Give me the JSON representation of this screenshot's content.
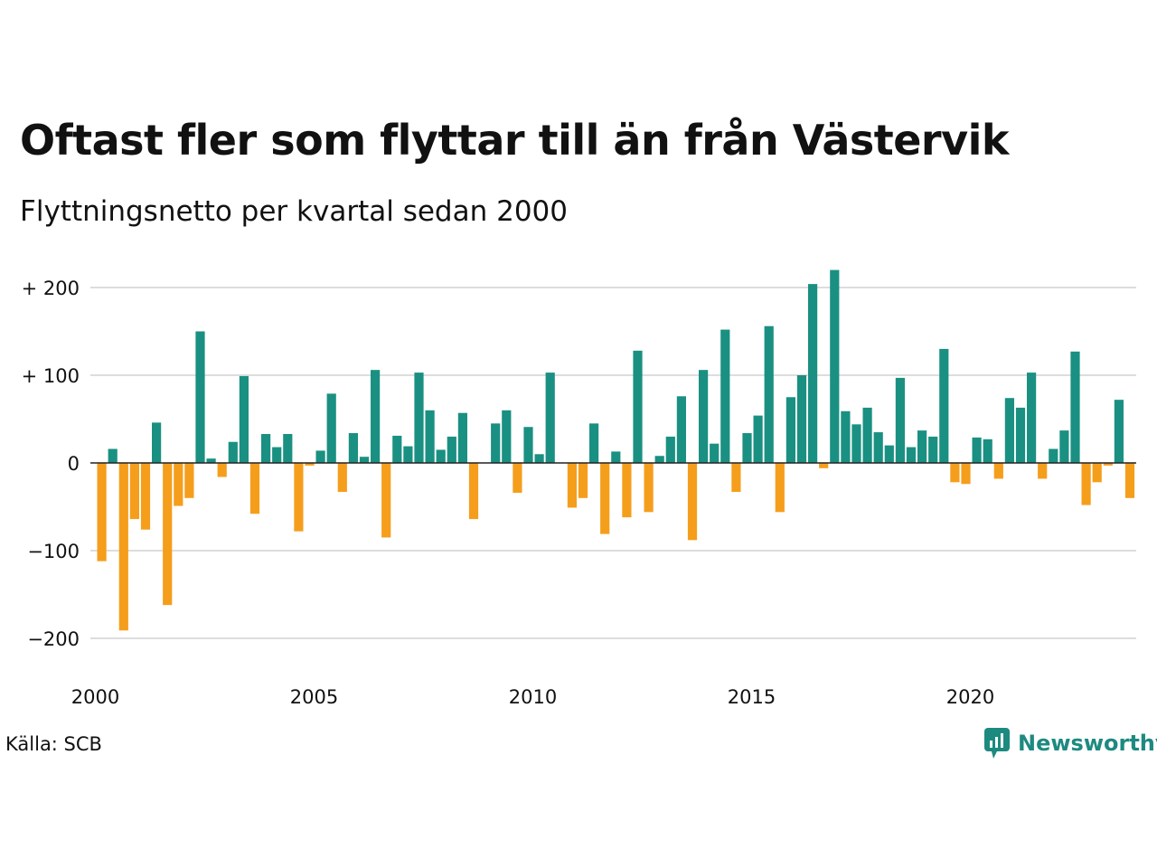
{
  "title": "Oftast fler som flyttar till än från Västervik",
  "subtitle": "Flyttningsnetto per kvartal sedan 2000",
  "source": "Källa: SCB",
  "logo": {
    "text": "Newsworthy",
    "color": "#1d8a80"
  },
  "colors": {
    "positive": "#1a9082",
    "negative": "#f59e1c",
    "grid": "#dddddd",
    "zero_line": "#222222"
  },
  "chart_data": {
    "type": "bar",
    "title": "Oftast fler som flyttar till än från Västervik",
    "subtitle": "Flyttningsnetto per kvartal sedan 2000",
    "x_tick_labels": [
      "2000",
      "2005",
      "2010",
      "2015",
      "2020"
    ],
    "y_tick_labels": [
      "+ 200",
      "+ 100",
      "0",
      "−100",
      "−200"
    ],
    "y_ticks": [
      200,
      100,
      0,
      -100,
      -200
    ],
    "ylim": [
      -215,
      225
    ],
    "start_year": 2000,
    "grid": true,
    "legend": "none",
    "values": [
      -112,
      16,
      -191,
      -64,
      -76,
      46,
      -162,
      -49,
      -40,
      150,
      5,
      -16,
      24,
      99,
      -58,
      33,
      18,
      33,
      -78,
      -3,
      14,
      79,
      -33,
      34,
      7,
      106,
      -85,
      31,
      19,
      103,
      60,
      15,
      30,
      57,
      -64,
      0,
      45,
      60,
      -34,
      41,
      10,
      103,
      0,
      -51,
      -40,
      45,
      -81,
      13,
      -62,
      128,
      -56,
      8,
      30,
      76,
      -88,
      106,
      22,
      152,
      -33,
      34,
      54,
      156,
      -56,
      75,
      100,
      204,
      -6,
      220,
      59,
      44,
      63,
      35,
      20,
      97,
      18,
      37,
      30,
      130,
      -22,
      -24,
      29,
      27,
      -18,
      74,
      63,
      103,
      -18,
      16,
      37,
      127,
      -48,
      -22,
      -3,
      72,
      -40
    ]
  }
}
